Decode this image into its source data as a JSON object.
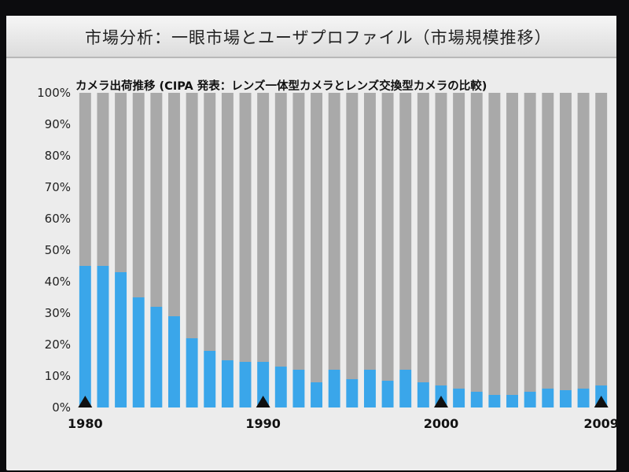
{
  "slide": {
    "title": "市場分析：一眼市場とユーザプロファイル（市場規模推移）"
  },
  "chart_data": {
    "type": "bar",
    "title": "カメラ出荷推移 (CIPA 発表：レンズ一体型カメラとレンズ交換型カメラの比較)",
    "xlabel": "",
    "ylabel": "",
    "ylim": [
      0,
      100
    ],
    "yticks": [
      "0%",
      "10%",
      "20%",
      "30%",
      "40%",
      "50%",
      "60%",
      "70%",
      "80%",
      "90%",
      "100%"
    ],
    "x_marker_labels": [
      "1980",
      "1990",
      "2000",
      "2009"
    ],
    "x": [
      1980,
      1981,
      1982,
      1983,
      1984,
      1985,
      1986,
      1987,
      1988,
      1989,
      1990,
      1991,
      1992,
      1993,
      1994,
      1995,
      1996,
      1997,
      1998,
      1999,
      2000,
      2001,
      2002,
      2003,
      2004,
      2005,
      2006,
      2007,
      2008,
      2009
    ],
    "stacked": true,
    "series": [
      {
        "color": "#3aa6ea",
        "values": [
          45,
          45,
          43,
          35,
          32,
          29,
          22,
          18,
          15,
          14.5,
          14.5,
          13,
          12,
          8,
          12,
          9,
          12,
          8.5,
          12,
          8,
          7,
          6,
          5,
          4,
          4,
          5,
          6,
          5.5,
          6,
          7
        ]
      },
      {
        "color": "#a9a9a9",
        "values": [
          55,
          55,
          57,
          65,
          68,
          71,
          78,
          82,
          85,
          85.5,
          85.5,
          87,
          88,
          92,
          88,
          91,
          88,
          91.5,
          88,
          92,
          93,
          94,
          95,
          96,
          96,
          95,
          94,
          94.5,
          94,
          93
        ]
      }
    ],
    "grid": false,
    "legend": "none"
  }
}
